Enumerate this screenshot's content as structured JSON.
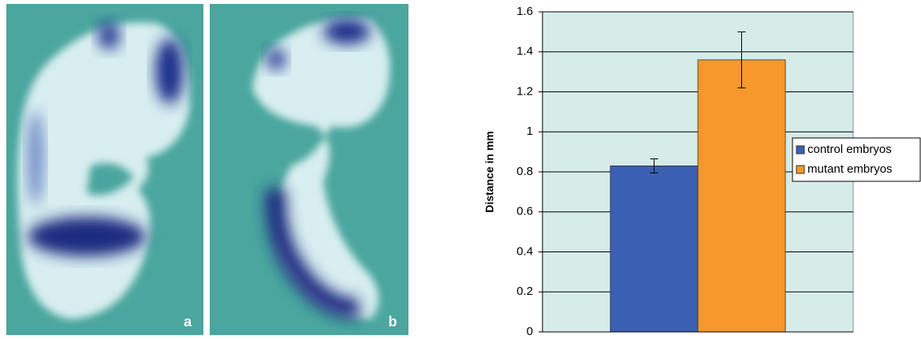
{
  "figure_panels": [
    "a",
    "b"
  ],
  "chart_data": {
    "type": "bar",
    "y_label": "Distance in mm",
    "categories": [
      null
    ],
    "series": [
      {
        "name": "control embryos",
        "color": "#3b5fb3",
        "values": [
          0.83
        ],
        "errors": [
          0.035
        ]
      },
      {
        "name": "mutant embryos",
        "color": "#f6982b",
        "values": [
          1.36
        ],
        "errors": [
          0.14
        ]
      }
    ],
    "ylim": [
      0,
      1.6
    ],
    "yticks": [
      0,
      0.2,
      0.4,
      0.6,
      0.8,
      1,
      1.2,
      1.4,
      1.6
    ],
    "grid": true,
    "legend": "right",
    "plot_background": "#d6ece8"
  }
}
